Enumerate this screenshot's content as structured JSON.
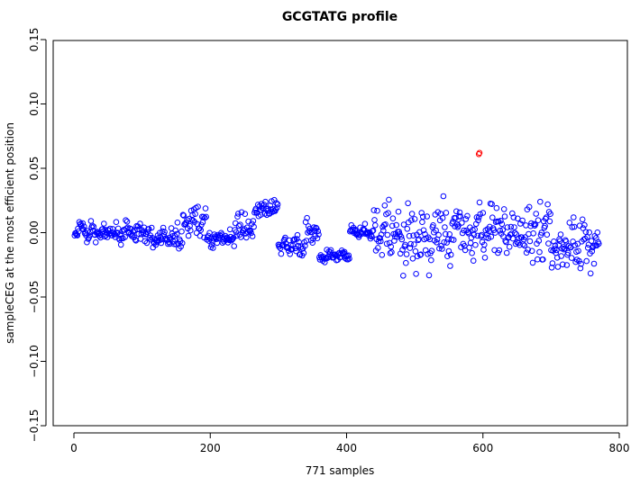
{
  "chart_data": {
    "type": "scatter",
    "title": "GCGTATG profile",
    "xlabel": "771 samples",
    "ylabel": "sampleCEG at the most efficient position",
    "xlim": [
      -30,
      800
    ],
    "ylim": [
      -0.15,
      0.15
    ],
    "xticks": [
      0,
      200,
      400,
      600,
      800
    ],
    "yticks": [
      -0.15,
      -0.1,
      -0.05,
      0.0,
      0.05,
      0.1,
      0.15
    ],
    "xtick_labels": [
      "0",
      "200",
      "400",
      "600",
      "800"
    ],
    "ytick_labels": [
      "−0.15",
      "−0.10",
      "−0.05",
      "0.00",
      "0.05",
      "0.10",
      "0.15"
    ],
    "grid": false,
    "marker": "open-circle",
    "point_color": "#0000ff",
    "highlight_color": "#ff0000",
    "segments": [
      {
        "x0": 1,
        "x1": 60,
        "y": 0.0,
        "spread": 0.012,
        "seed": 11
      },
      {
        "x0": 60,
        "x1": 115,
        "y": 0.0,
        "spread": 0.013,
        "seed": 12
      },
      {
        "x0": 115,
        "x1": 150,
        "y": -0.005,
        "spread": 0.014,
        "seed": 13
      },
      {
        "x0": 150,
        "x1": 160,
        "y": 0.0,
        "spread": 0.032,
        "seed": 14
      },
      {
        "x0": 160,
        "x1": 195,
        "y": 0.008,
        "spread": 0.022,
        "seed": 15
      },
      {
        "x0": 195,
        "x1": 235,
        "y": -0.005,
        "spread": 0.009,
        "seed": 16
      },
      {
        "x0": 235,
        "x1": 265,
        "y": 0.003,
        "spread": 0.025,
        "seed": 17
      },
      {
        "x0": 265,
        "x1": 300,
        "y": 0.018,
        "spread": 0.012,
        "seed": 18
      },
      {
        "x0": 300,
        "x1": 340,
        "y": -0.01,
        "spread": 0.014,
        "seed": 19
      },
      {
        "x0": 340,
        "x1": 360,
        "y": -0.002,
        "spread": 0.016,
        "seed": 20
      },
      {
        "x0": 360,
        "x1": 405,
        "y": -0.018,
        "spread": 0.008,
        "seed": 21
      },
      {
        "x0": 405,
        "x1": 440,
        "y": 0.0,
        "spread": 0.008,
        "seed": 22
      },
      {
        "x0": 440,
        "x1": 480,
        "y": 0.0,
        "spread": 0.035,
        "seed": 23
      },
      {
        "x0": 480,
        "x1": 530,
        "y": -0.005,
        "spread": 0.04,
        "seed": 24
      },
      {
        "x0": 530,
        "x1": 580,
        "y": 0.0,
        "spread": 0.035,
        "seed": 25
      },
      {
        "x0": 580,
        "x1": 625,
        "y": 0.0,
        "spread": 0.038,
        "seed": 26
      },
      {
        "x0": 625,
        "x1": 660,
        "y": 0.0,
        "spread": 0.035,
        "seed": 27
      },
      {
        "x0": 660,
        "x1": 700,
        "y": 0.0,
        "spread": 0.04,
        "seed": 28
      },
      {
        "x0": 700,
        "x1": 771,
        "y": -0.01,
        "spread": 0.03,
        "seed": 29
      }
    ],
    "highlight_points": [
      {
        "x": 594,
        "y": 0.061
      },
      {
        "x": 595,
        "y": 0.062
      }
    ]
  }
}
